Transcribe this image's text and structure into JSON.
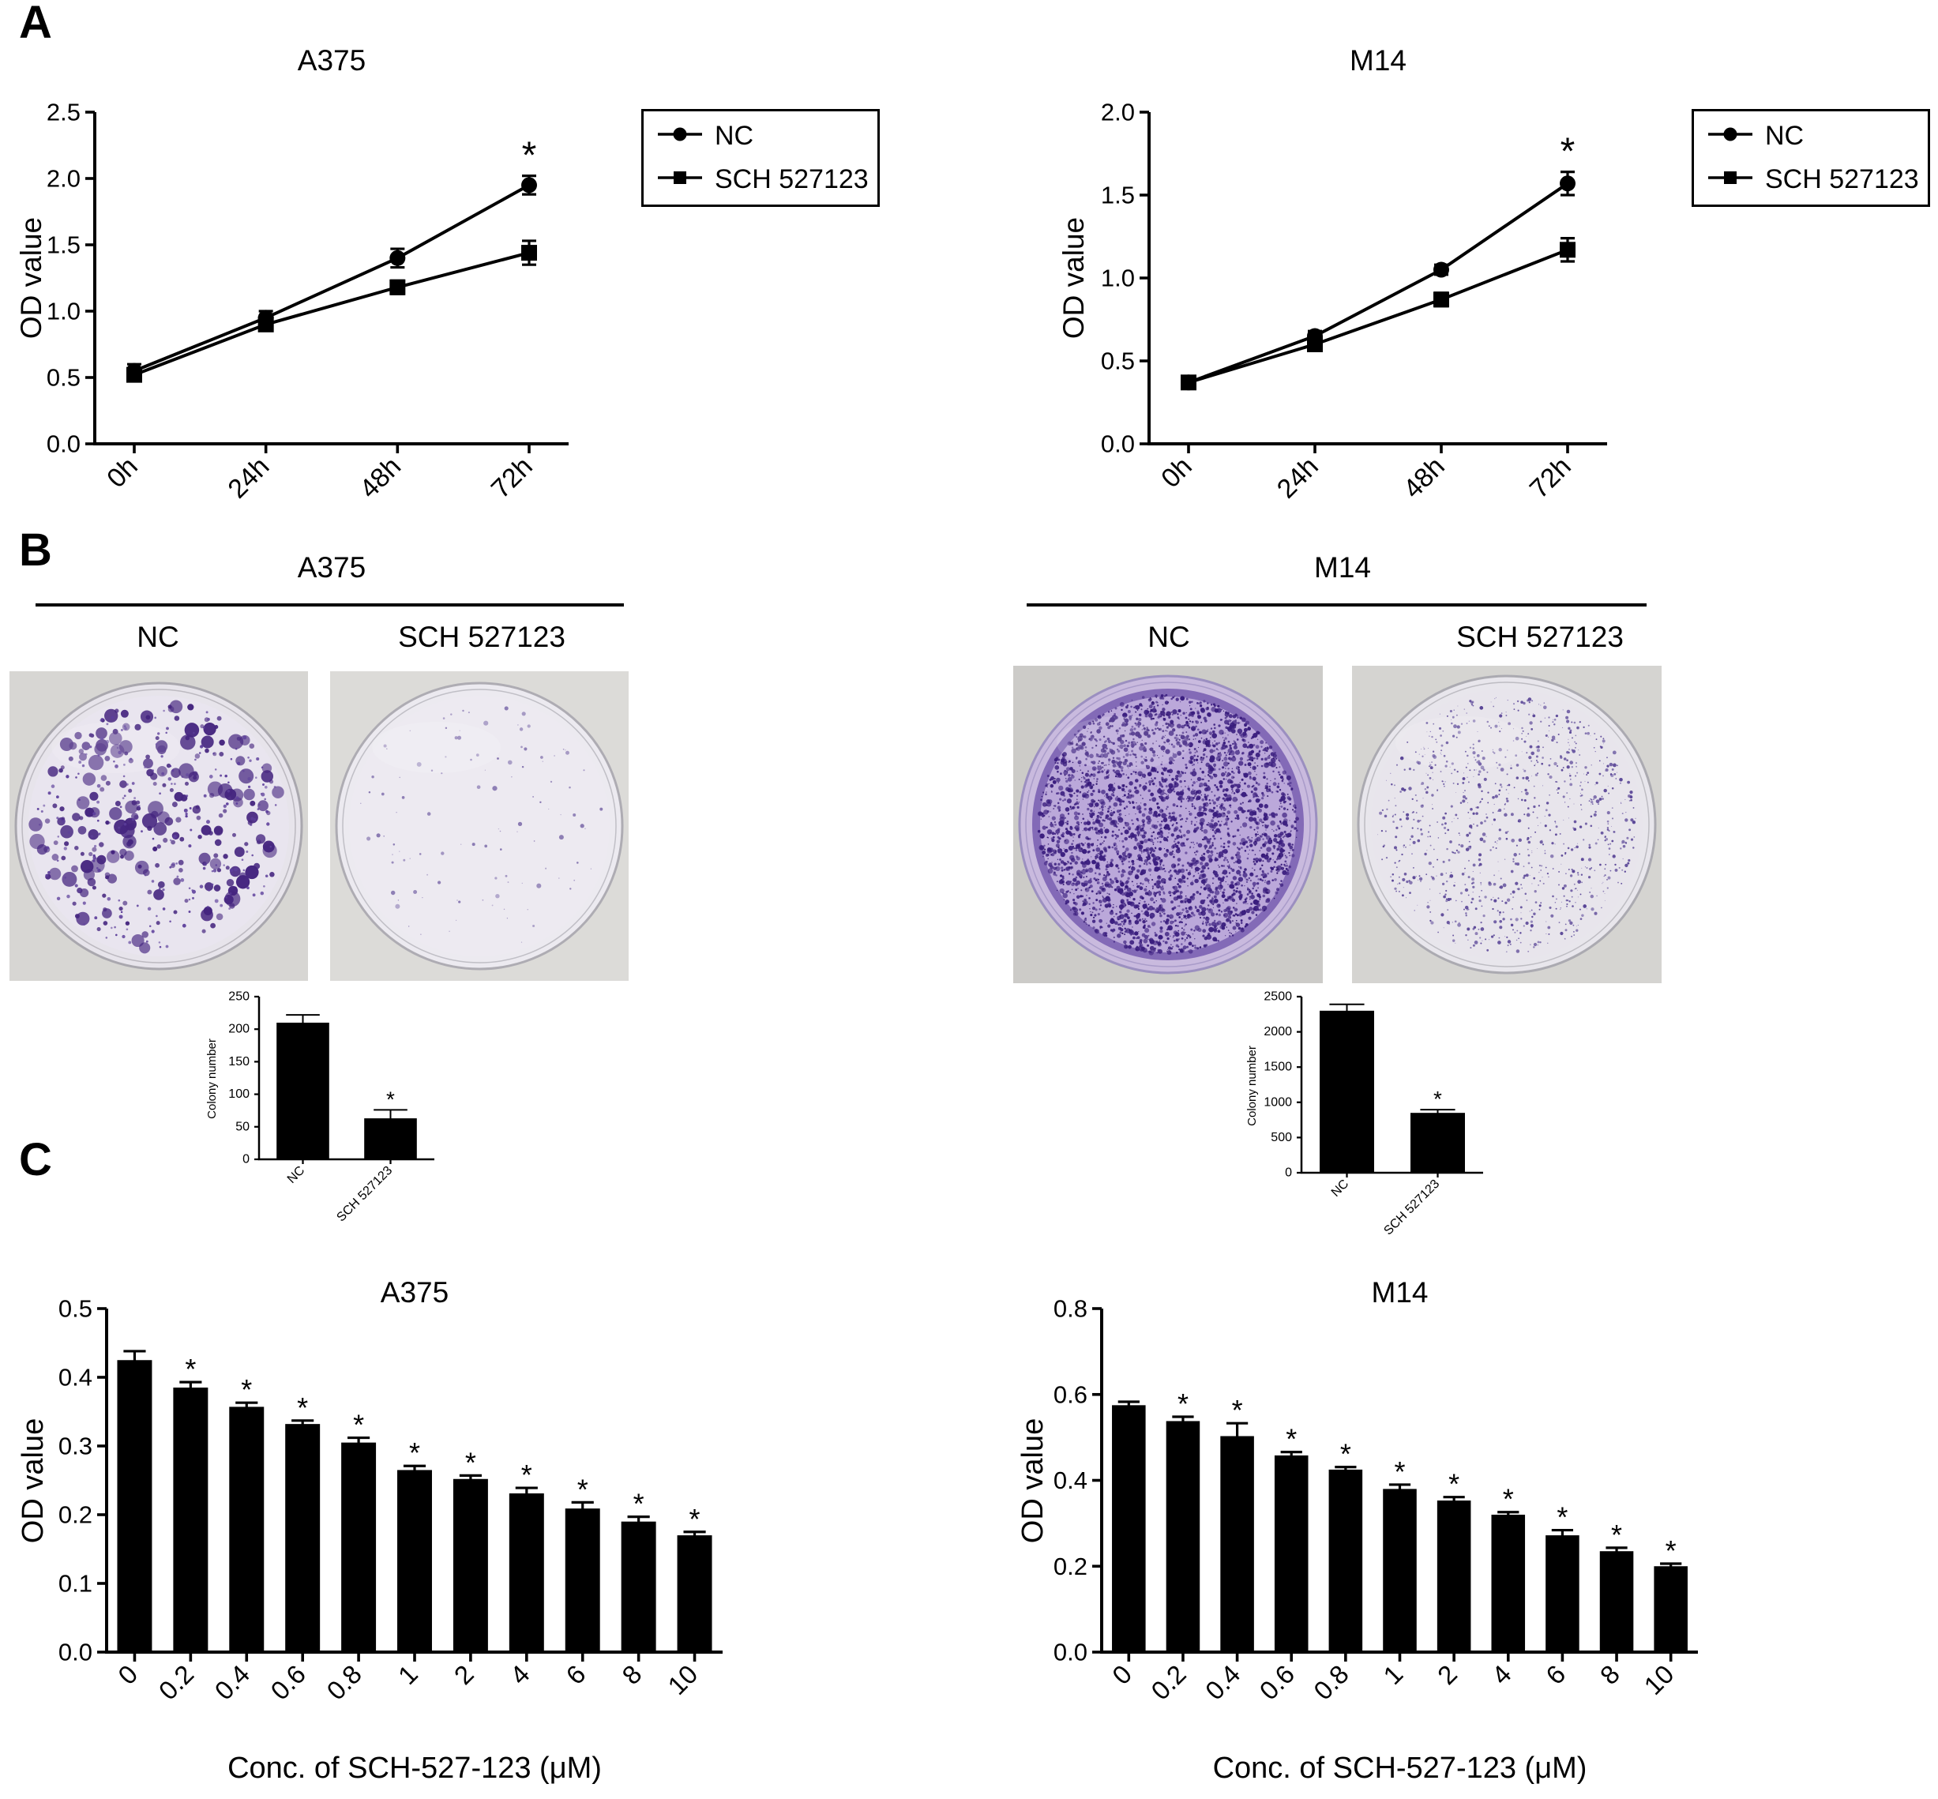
{
  "panels": {
    "a": {
      "label": "A"
    },
    "b": {
      "label": "B",
      "left": {
        "title": "A375",
        "columns": [
          "NC",
          "SCH 527123"
        ]
      },
      "right": {
        "title": "M14",
        "columns": [
          "NC",
          "SCH 527123"
        ]
      }
    },
    "c": {
      "label": "C"
    }
  },
  "chart_data": [
    {
      "id": "a375_growth",
      "type": "line",
      "title": "A375",
      "ylabel": "OD value",
      "categories": [
        "0h",
        "24h",
        "48h",
        "72h"
      ],
      "ylim": [
        0,
        2.5
      ],
      "ytick": 0.5,
      "series": [
        {
          "name": "NC",
          "marker": "circle",
          "values": [
            0.55,
            0.95,
            1.4,
            1.95
          ],
          "errors": [
            0.05,
            0.05,
            0.07,
            0.07
          ]
        },
        {
          "name": "SCH 527123",
          "marker": "square",
          "values": [
            0.52,
            0.9,
            1.18,
            1.44
          ],
          "errors": [
            0.04,
            0.04,
            0.05,
            0.09
          ]
        }
      ],
      "significance": [
        {
          "category": "72h",
          "series": "NC",
          "symbol": "*"
        }
      ],
      "legend_position": "right-outside",
      "grid": false
    },
    {
      "id": "m14_growth",
      "type": "line",
      "title": "M14",
      "ylabel": "OD value",
      "categories": [
        "0h",
        "24h",
        "48h",
        "72h"
      ],
      "ylim": [
        0,
        2.0
      ],
      "ytick": 0.5,
      "series": [
        {
          "name": "NC",
          "marker": "circle",
          "values": [
            0.37,
            0.65,
            1.05,
            1.57
          ],
          "errors": [
            0.02,
            0.03,
            0.03,
            0.07
          ]
        },
        {
          "name": "SCH 527123",
          "marker": "square",
          "values": [
            0.37,
            0.6,
            0.87,
            1.17
          ],
          "errors": [
            0.02,
            0.03,
            0.04,
            0.07
          ]
        }
      ],
      "significance": [
        {
          "category": "72h",
          "series": "NC",
          "symbol": "*"
        }
      ],
      "legend_position": "right-outside",
      "grid": false
    },
    {
      "id": "a375_colony",
      "type": "bar",
      "ylabel": "Colony number",
      "categories": [
        "NC",
        "SCH 527123"
      ],
      "values": [
        210,
        63
      ],
      "errors": [
        12,
        13
      ],
      "ylim": [
        0,
        250
      ],
      "ytick": 50,
      "stars": [
        1
      ],
      "star_symbol": "*",
      "bar_color": "#000000",
      "grid": false
    },
    {
      "id": "m14_colony",
      "type": "bar",
      "ylabel": "Colony number",
      "categories": [
        "NC",
        "SCH 527123"
      ],
      "values": [
        2300,
        850
      ],
      "errors": [
        90,
        45
      ],
      "ylim": [
        0,
        2500
      ],
      "ytick": 500,
      "stars": [
        1
      ],
      "star_symbol": "*",
      "bar_color": "#000000",
      "grid": false
    },
    {
      "id": "a375_dose",
      "type": "bar",
      "title": "A375",
      "ylabel": "OD value",
      "xlabel": "Conc. of SCH-527-123 (μM)",
      "categories": [
        "0",
        "0.2",
        "0.4",
        "0.6",
        "0.8",
        "1",
        "2",
        "4",
        "6",
        "8",
        "10"
      ],
      "values": [
        0.425,
        0.385,
        0.357,
        0.332,
        0.305,
        0.265,
        0.252,
        0.231,
        0.209,
        0.19,
        0.17
      ],
      "errors": [
        0.013,
        0.008,
        0.006,
        0.005,
        0.007,
        0.006,
        0.005,
        0.008,
        0.009,
        0.007,
        0.005
      ],
      "ylim": [
        0,
        0.5
      ],
      "ytick": 0.1,
      "stars": [
        1,
        2,
        3,
        4,
        5,
        6,
        7,
        8,
        9,
        10
      ],
      "star_symbol": "*",
      "bar_color": "#000000",
      "grid": false
    },
    {
      "id": "m14_dose",
      "type": "bar",
      "title": "M14",
      "ylabel": "OD value",
      "xlabel": "Conc. of SCH-527-123 (μM)",
      "categories": [
        "0",
        "0.2",
        "0.4",
        "0.6",
        "0.8",
        "1",
        "2",
        "4",
        "6",
        "8",
        "10"
      ],
      "values": [
        0.575,
        0.538,
        0.503,
        0.458,
        0.425,
        0.38,
        0.353,
        0.32,
        0.272,
        0.235,
        0.2
      ],
      "errors": [
        0.008,
        0.01,
        0.03,
        0.008,
        0.006,
        0.01,
        0.008,
        0.006,
        0.012,
        0.008,
        0.006
      ],
      "ylim": [
        0,
        0.8
      ],
      "ytick": 0.2,
      "stars": [
        1,
        2,
        3,
        4,
        5,
        6,
        7,
        8,
        9,
        10
      ],
      "star_symbol": "*",
      "bar_color": "#000000",
      "grid": false
    }
  ],
  "dishes": [
    {
      "id": "a375_nc_dish",
      "cell_line": "A375",
      "group": "NC",
      "colony_density": "high",
      "visual": {
        "photo_bg": "#d7d6d3",
        "plate": "#e7e4eb",
        "rim": "#a9a7ae",
        "bg": "#e9e5ef",
        "dots": 250,
        "dot_min": 2.5,
        "dot_max": 10,
        "color": "#45257f",
        "extra": 220,
        "color2": "#5d3f9b"
      }
    },
    {
      "id": "a375_sch_dish",
      "cell_line": "A375",
      "group": "SCH 527123",
      "colony_density": "sparse",
      "visual": {
        "photo_bg": "#dcdbd8",
        "plate": "#eceaf0",
        "rim": "#aeacb3",
        "bg": "#edeaf1",
        "dots": 60,
        "dot_min": 1.2,
        "dot_max": 3.2,
        "color": "#8676b0",
        "extra": 50,
        "color2": "#9a8cbd"
      }
    },
    {
      "id": "m14_nc_dish",
      "cell_line": "M14",
      "group": "NC",
      "colony_density": "very-high",
      "visual": {
        "photo_bg": "#cccbc8",
        "plate": "#c9bade",
        "rim": "#9b8fc0",
        "bg": "#bba8da",
        "dots": 2400,
        "dot_min": 1.2,
        "dot_max": 3.4,
        "color": "#3a1d7e",
        "extra": 900,
        "color2": "#2c1168",
        "edge": "#55379b"
      }
    },
    {
      "id": "m14_sch_dish",
      "cell_line": "M14",
      "group": "SCH 527123",
      "colony_density": "medium-sparse",
      "visual": {
        "photo_bg": "#d5d4d1",
        "plate": "#e8e6ec",
        "rim": "#abaab1",
        "bg": "#e8e5ec",
        "dots": 800,
        "dot_min": 0.9,
        "dot_max": 2.4,
        "color": "#5a4697",
        "extra": 250,
        "color2": "#6d5aa6"
      }
    }
  ]
}
